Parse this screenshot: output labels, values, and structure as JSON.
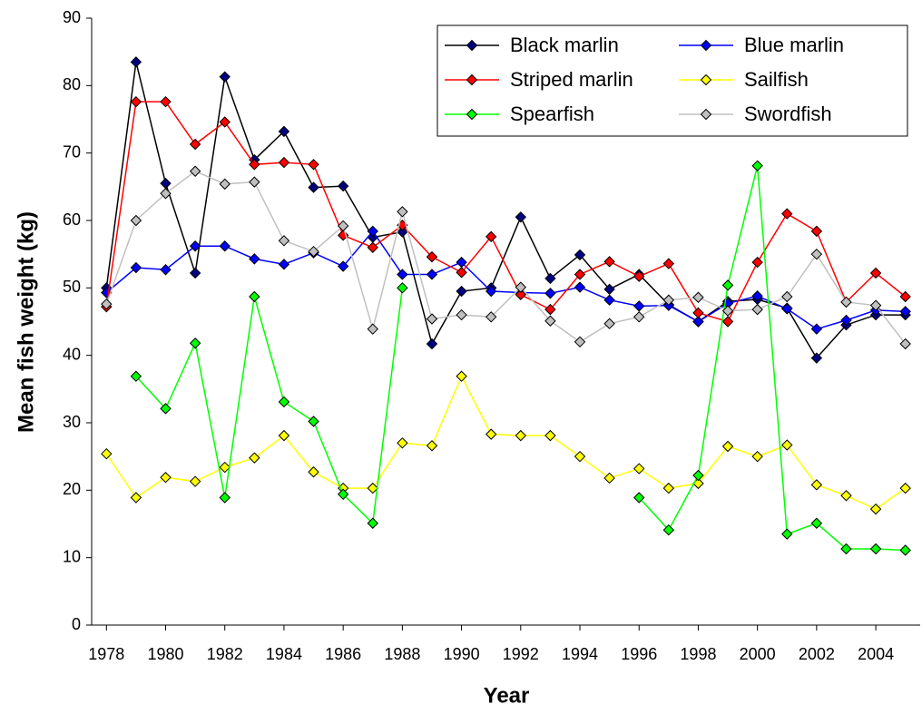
{
  "chart_data": {
    "type": "line",
    "x_label": "Year",
    "y_label": "Mean fish weight (kg)",
    "x": [
      1978,
      1979,
      1980,
      1981,
      1982,
      1983,
      1984,
      1985,
      1986,
      1987,
      1988,
      1989,
      1990,
      1991,
      1992,
      1993,
      1994,
      1995,
      1996,
      1997,
      1998,
      1999,
      2000,
      2001,
      2002,
      2003,
      2004,
      2005
    ],
    "xlim": [
      1977.5,
      2005.5
    ],
    "xticks": [
      1978,
      1980,
      1982,
      1984,
      1986,
      1988,
      1990,
      1992,
      1994,
      1996,
      1998,
      2000,
      2002,
      2004
    ],
    "ylim": [
      0,
      90
    ],
    "yticks": [
      0,
      10,
      20,
      30,
      40,
      50,
      60,
      70,
      80,
      90
    ],
    "grid": false,
    "legend": "top-right",
    "series": [
      {
        "name": "Black marlin",
        "color": "#000080",
        "values": [
          50,
          83.5,
          65.5,
          52.2,
          81.3,
          69,
          73.2,
          64.9,
          65.1,
          57.5,
          58.3,
          41.7,
          49.5,
          50,
          60.5,
          51.4,
          54.9,
          49.8,
          52,
          47.5,
          45,
          48,
          48.3,
          47,
          39.6,
          44.5,
          46,
          46
        ]
      },
      {
        "name": "Blue marlin",
        "color": "#0000ff",
        "values": [
          49.3,
          53,
          52.7,
          56.2,
          56.2,
          54.3,
          53.5,
          55.2,
          53.2,
          58.4,
          52,
          52,
          53.8,
          49.5,
          49.3,
          49.2,
          50.1,
          48.2,
          47.3,
          47.4,
          45,
          47.7,
          48.8,
          46.9,
          43.9,
          45.2,
          46.7,
          46.5
        ]
      },
      {
        "name": "Striped marlin",
        "color": "#ff0000",
        "values": [
          47.2,
          77.6,
          77.6,
          71.3,
          74.6,
          68.3,
          68.6,
          68.3,
          57.8,
          56,
          59.3,
          54.6,
          52.3,
          57.6,
          49,
          46.8,
          52,
          53.9,
          51.7,
          53.6,
          46.3,
          45,
          53.8,
          61,
          58.4,
          47.9,
          52.2,
          48.7
        ]
      },
      {
        "name": "Sailfish",
        "color": "#ffff00",
        "values": [
          25.4,
          18.9,
          21.9,
          21.3,
          23.4,
          24.8,
          28.1,
          22.7,
          20.3,
          20.3,
          27,
          26.6,
          36.9,
          28.3,
          28.1,
          28.1,
          25,
          21.8,
          23.2,
          20.3,
          21,
          26.5,
          25,
          26.7,
          20.8,
          19.2,
          17.2,
          20.3
        ]
      },
      {
        "name": "Spearfish",
        "color": "#00ff00",
        "values": [
          null,
          36.9,
          32.1,
          41.8,
          18.9,
          48.7,
          33.1,
          30.2,
          19.4,
          15.1,
          50,
          null,
          null,
          null,
          null,
          null,
          null,
          null,
          18.9,
          14.1,
          22.2,
          50.4,
          68.1,
          13.5,
          15.1,
          11.3,
          11.3,
          11.1
        ]
      },
      {
        "name": "Swordfish",
        "color": "#c0c0c0",
        "values": [
          47.6,
          60,
          64,
          67.3,
          65.4,
          65.7,
          57,
          55.4,
          59.2,
          43.9,
          61.3,
          45.4,
          46,
          45.7,
          50.1,
          45.1,
          42,
          44.7,
          45.7,
          48.2,
          48.6,
          46.6,
          46.8,
          48.7,
          55,
          47.9,
          47.4,
          41.7
        ]
      }
    ]
  }
}
